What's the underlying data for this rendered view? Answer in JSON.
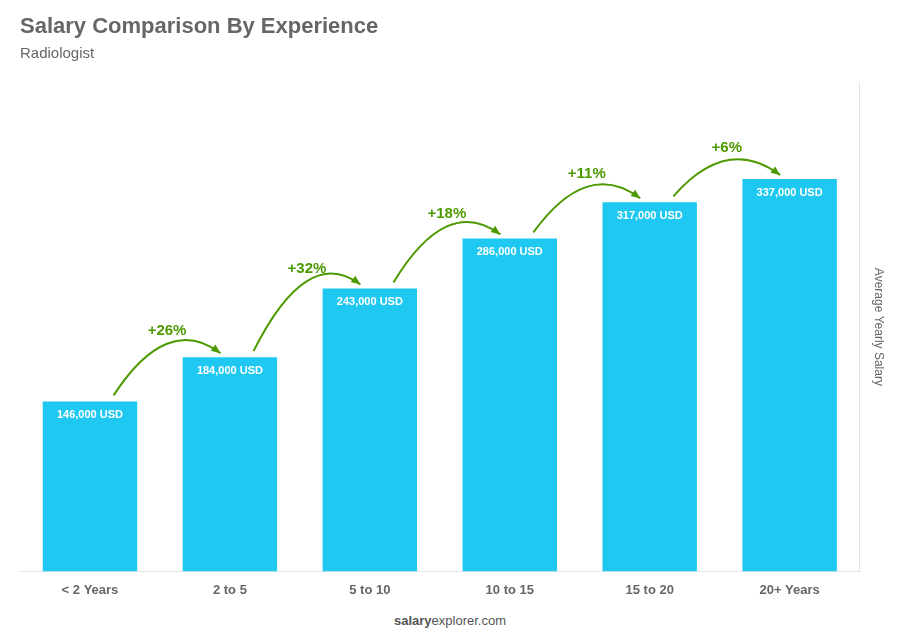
{
  "chart_data": {
    "type": "bar",
    "title": "Salary Comparison By Experience",
    "subtitle": "Radiologist",
    "ylabel": "Average Yearly Salary",
    "watermark": [
      "salary",
      "explorer.com"
    ],
    "categories": [
      "< 2 Years",
      "2 to 5",
      "5 to 10",
      "10 to 15",
      "15 to 20",
      "20+ Years"
    ],
    "values": [
      146000,
      184000,
      243000,
      286000,
      317000,
      337000
    ],
    "value_labels": [
      "146,000 USD",
      "184,000 USD",
      "243,000 USD",
      "286,000 USD",
      "317,000 USD",
      "337,000 USD"
    ],
    "data_labels": true,
    "annotations": [
      "+26%",
      "+32%",
      "+18%",
      "+11%",
      "+6%"
    ],
    "color": "#1EC8F0",
    "ylim": [
      0,
      420000
    ],
    "grid": false,
    "tick_labels": "x"
  }
}
